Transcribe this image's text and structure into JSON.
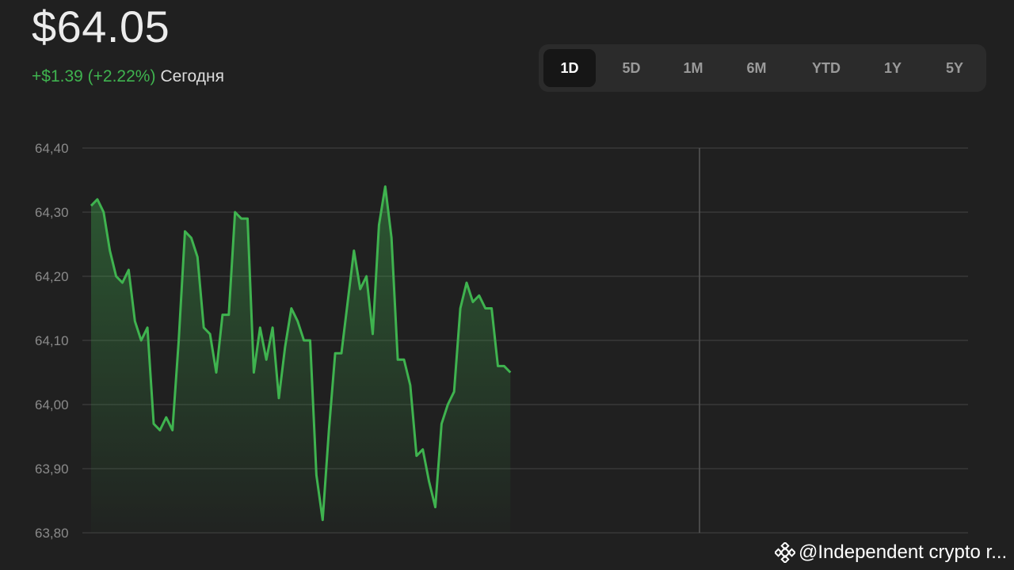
{
  "quote": {
    "price": "$64.05",
    "change": "+$1.39 (+2.22%)",
    "period": "Сегодня"
  },
  "range_tabs": [
    {
      "label": "1D",
      "active": true
    },
    {
      "label": "5D",
      "active": false
    },
    {
      "label": "1M",
      "active": false
    },
    {
      "label": "6M",
      "active": false
    },
    {
      "label": "YTD",
      "active": false
    },
    {
      "label": "1Y",
      "active": false
    },
    {
      "label": "5Y",
      "active": false
    }
  ],
  "watermark": {
    "icon": "binance-diamond-icon",
    "text": "@Independent crypto r..."
  },
  "colors": {
    "background": "#202020",
    "accent_green": "#3fb34f",
    "grid": "#444444",
    "axis_text": "#8a8a8a"
  },
  "chart_data": {
    "type": "line",
    "ylim": [
      63.8,
      64.4
    ],
    "y_ticks": [
      "64,40",
      "64,30",
      "64,20",
      "64,10",
      "64,00",
      "63,90",
      "63,80"
    ],
    "grid": true,
    "series": [
      {
        "values": [
          64.31,
          64.32,
          64.3,
          64.24,
          64.2,
          64.19,
          64.21,
          64.13,
          64.1,
          64.12,
          63.97,
          63.96,
          63.98,
          63.96,
          64.1,
          64.27,
          64.26,
          64.23,
          64.12,
          64.11,
          64.05,
          64.14,
          64.14,
          64.3,
          64.29,
          64.29,
          64.05,
          64.12,
          64.07,
          64.12,
          64.01,
          64.09,
          64.15,
          64.13,
          64.1,
          64.1,
          63.89,
          63.82,
          63.96,
          64.08,
          64.08,
          64.16,
          64.24,
          64.18,
          64.2,
          64.11,
          64.28,
          64.34,
          64.26,
          64.07,
          64.07,
          64.03,
          63.92,
          63.93,
          63.88,
          63.84,
          63.97,
          64.0,
          64.02,
          64.15,
          64.19,
          64.16,
          64.17,
          64.15,
          64.15,
          64.06,
          64.06,
          64.05
        ]
      }
    ]
  }
}
